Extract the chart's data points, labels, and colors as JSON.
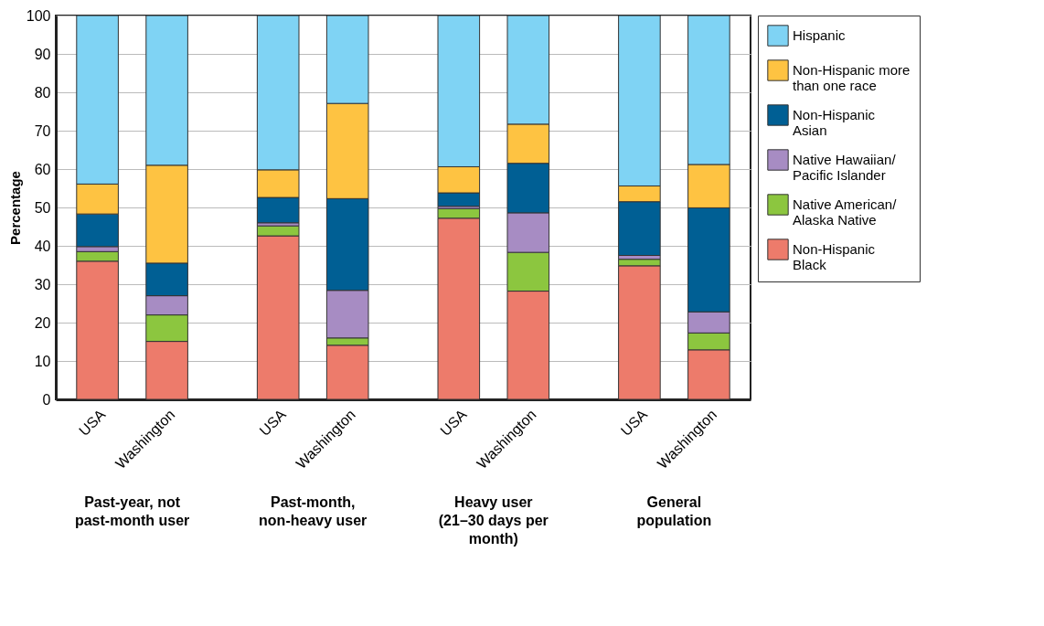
{
  "chart_data": {
    "type": "bar",
    "stacked": true,
    "ylabel": "Percentage",
    "categories": [
      "USA",
      "Washington",
      "USA",
      "Washington",
      "USA",
      "Washington",
      "USA",
      "Washington"
    ],
    "ylim": [
      0,
      100
    ],
    "yticks": [
      0,
      10,
      20,
      30,
      40,
      50,
      60,
      70,
      80,
      90,
      100
    ],
    "grid": "y",
    "legend": "right",
    "annotations": [
      "Past-year, not past-month user",
      "Past-month, non-heavy user",
      "Heavy user (21–30 days per month)",
      "General population"
    ],
    "series": [
      {
        "name": "Non-Hispanic Black",
        "color": "#ed7b6b",
        "values": [
          36,
          15.1,
          42.6,
          14.1,
          47.2,
          28.2,
          34.8,
          12.9
        ]
      },
      {
        "name": "Native American/ Alaska Native",
        "color": "#8cc63f",
        "values": [
          2.5,
          6.9,
          2.6,
          1.9,
          2.5,
          10.1,
          1.7,
          4.4
        ]
      },
      {
        "name": "Native Hawaiian/ Pacific Islander",
        "color": "#a78cc3",
        "values": [
          1.3,
          5,
          0.8,
          12.4,
          0.6,
          10.3,
          1,
          5.5
        ]
      },
      {
        "name": "Non-Hispanic Asian",
        "color": "#005f94",
        "values": [
          8.5,
          8.5,
          6.6,
          23.9,
          3.5,
          12.9,
          14,
          27.1
        ]
      },
      {
        "name": "Non-Hispanic more than one race",
        "color": "#fec342",
        "values": [
          7.8,
          25.5,
          7.2,
          24.8,
          6.8,
          10.2,
          4.1,
          11.3
        ]
      },
      {
        "name": "Hispanic",
        "color": "#7fd3f4",
        "values": [
          43.9,
          39,
          40.2,
          22.9,
          39.4,
          28.3,
          44.4,
          38.8
        ]
      }
    ]
  }
}
